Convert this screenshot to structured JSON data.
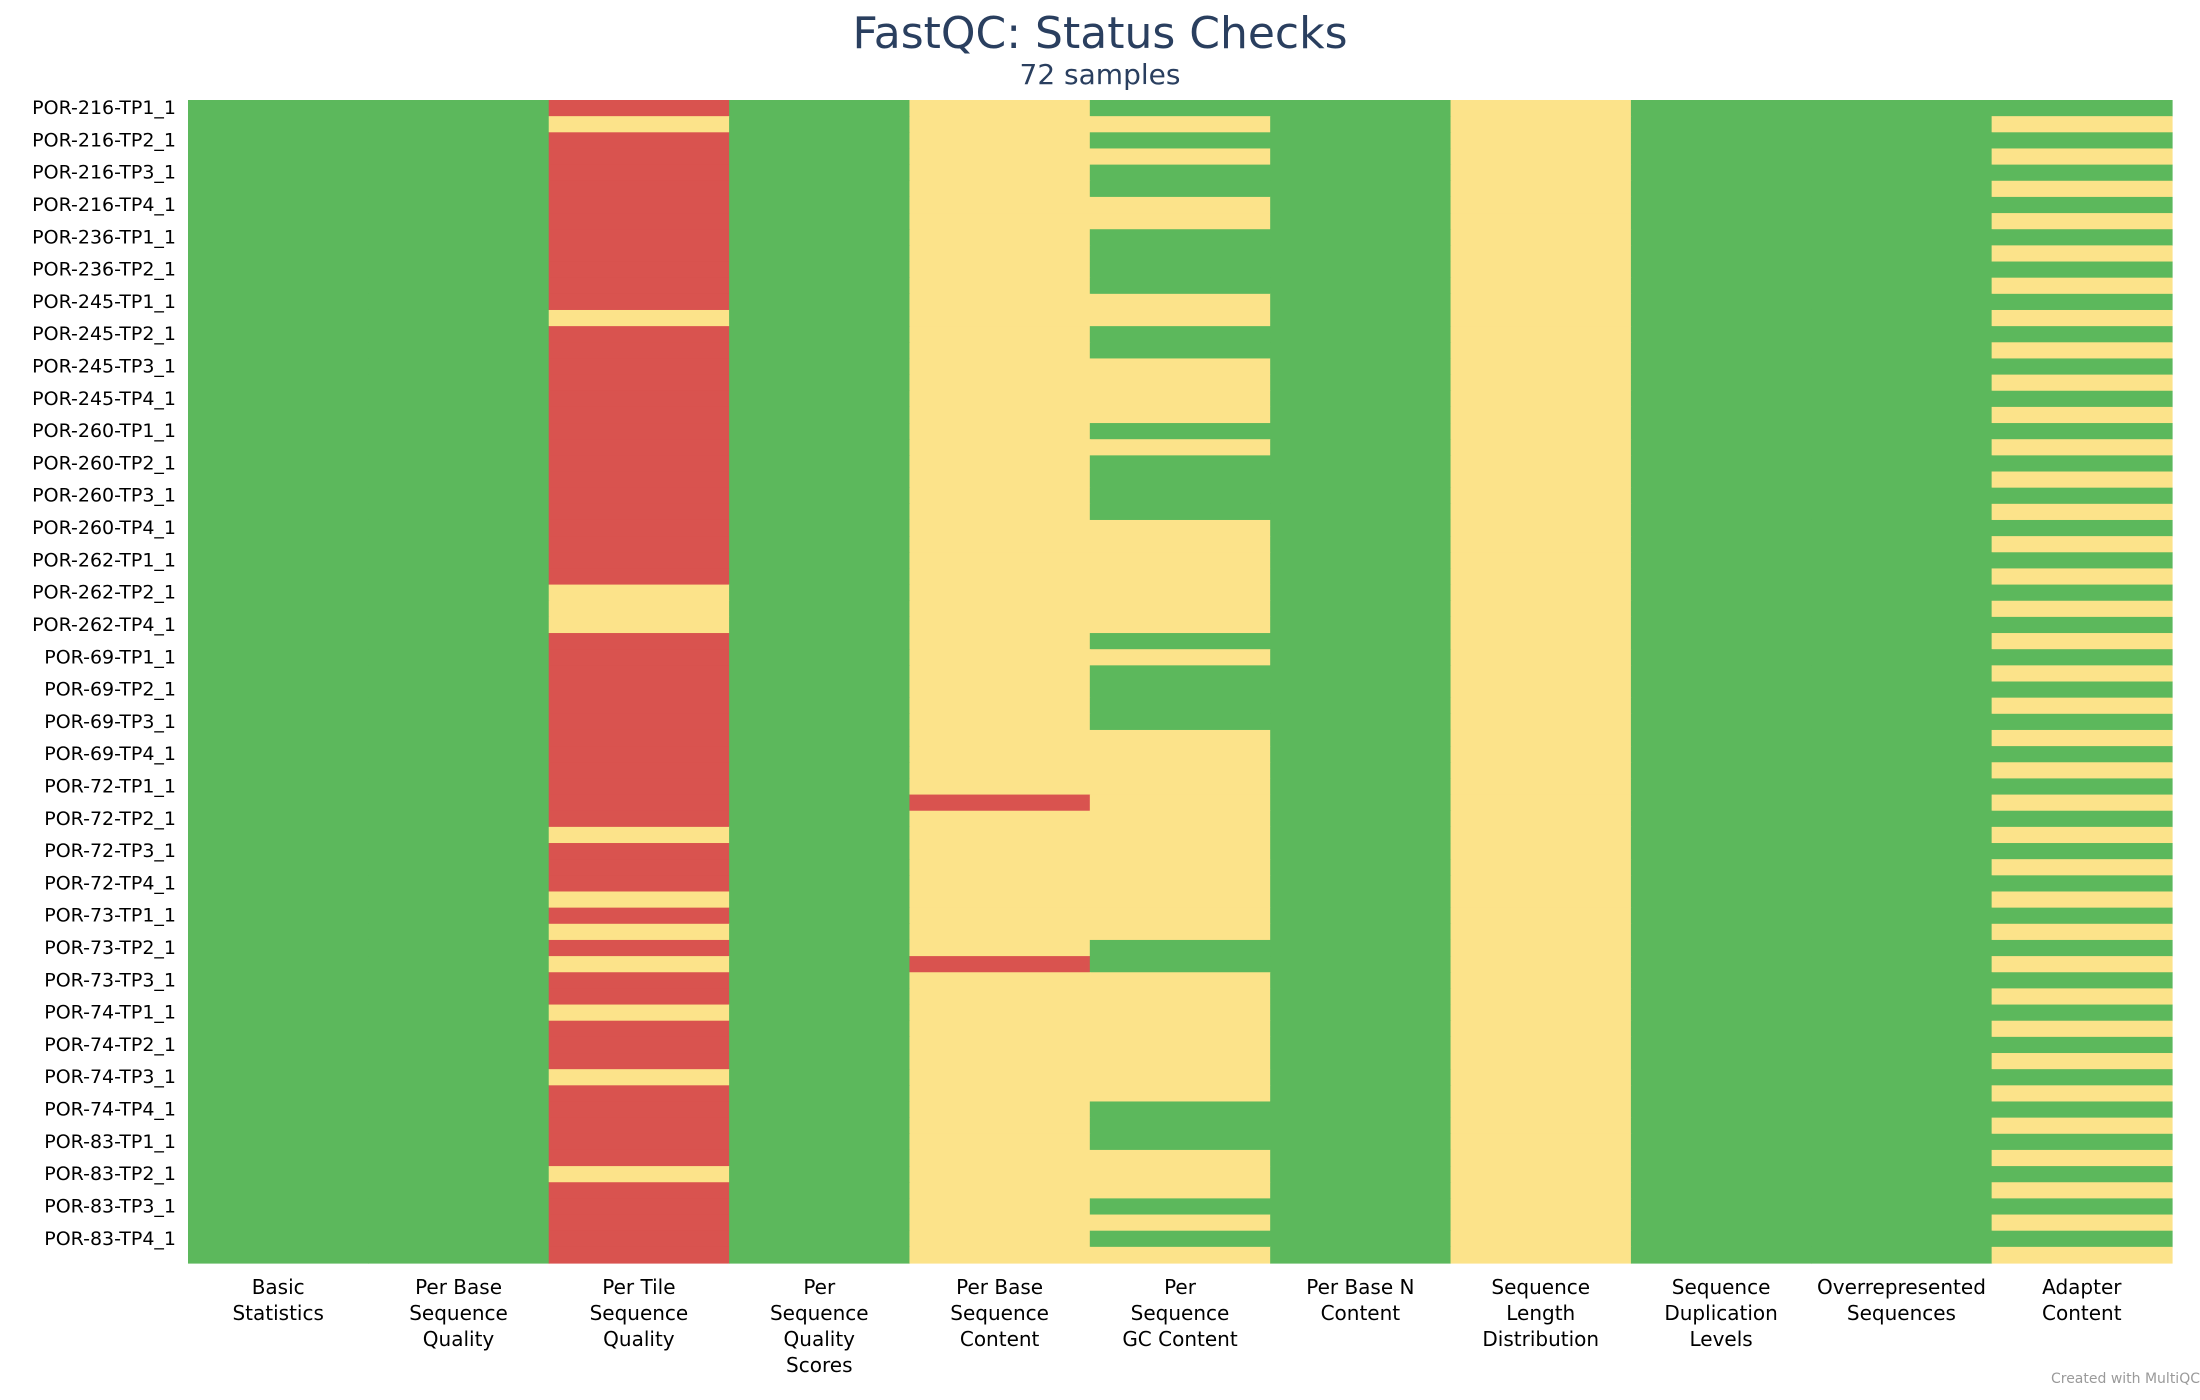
{
  "chart_data": {
    "type": "heatmap",
    "title": "FastQC: Status Checks",
    "subtitle": "72 samples",
    "colors": {
      "pass": "#5cb85c",
      "warn": "#fce38a",
      "fail": "#d9534f"
    },
    "columns": [
      [
        "Basic",
        "Statistics"
      ],
      [
        "Per Base",
        "Sequence",
        "Quality"
      ],
      [
        "Per Tile",
        "Sequence",
        "Quality"
      ],
      [
        "Per",
        "Sequence",
        "Quality",
        "Scores"
      ],
      [
        "Per Base",
        "Sequence",
        "Content"
      ],
      [
        "Per",
        "Sequence",
        "GC Content"
      ],
      [
        "Per Base N",
        "Content"
      ],
      [
        "Sequence",
        "Length",
        "Distribution"
      ],
      [
        "Sequence",
        "Duplication",
        "Levels"
      ],
      [
        "Overrepresented",
        "Sequences"
      ],
      [
        "Adapter",
        "Content"
      ]
    ],
    "row_labels": [
      "POR-216-TP1_1",
      "POR-216-TP2_1",
      "POR-216-TP3_1",
      "POR-216-TP4_1",
      "POR-236-TP1_1",
      "POR-236-TP2_1",
      "POR-245-TP1_1",
      "POR-245-TP2_1",
      "POR-245-TP3_1",
      "POR-245-TP4_1",
      "POR-260-TP1_1",
      "POR-260-TP2_1",
      "POR-260-TP3_1",
      "POR-260-TP4_1",
      "POR-262-TP1_1",
      "POR-262-TP2_1",
      "POR-262-TP4_1",
      "POR-69-TP1_1",
      "POR-69-TP2_1",
      "POR-69-TP3_1",
      "POR-69-TP4_1",
      "POR-72-TP1_1",
      "POR-72-TP2_1",
      "POR-72-TP3_1",
      "POR-72-TP4_1",
      "POR-73-TP1_1",
      "POR-73-TP2_1",
      "POR-73-TP3_1",
      "POR-74-TP1_1",
      "POR-74-TP2_1",
      "POR-74-TP3_1",
      "POR-74-TP4_1",
      "POR-83-TP1_1",
      "POR-83-TP2_1",
      "POR-83-TP3_1",
      "POR-83-TP4_1"
    ],
    "status_rows": [
      [
        "pass",
        "pass",
        "fail",
        "pass",
        "warn",
        "pass",
        "pass",
        "warn",
        "pass",
        "pass",
        "pass"
      ],
      [
        "pass",
        "pass",
        "warn",
        "pass",
        "warn",
        "warn",
        "pass",
        "warn",
        "pass",
        "pass",
        "warn"
      ],
      [
        "pass",
        "pass",
        "fail",
        "pass",
        "warn",
        "pass",
        "pass",
        "warn",
        "pass",
        "pass",
        "pass"
      ],
      [
        "pass",
        "pass",
        "fail",
        "pass",
        "warn",
        "warn",
        "pass",
        "warn",
        "pass",
        "pass",
        "warn"
      ],
      [
        "pass",
        "pass",
        "fail",
        "pass",
        "warn",
        "pass",
        "pass",
        "warn",
        "pass",
        "pass",
        "pass"
      ],
      [
        "pass",
        "pass",
        "fail",
        "pass",
        "warn",
        "pass",
        "pass",
        "warn",
        "pass",
        "pass",
        "warn"
      ],
      [
        "pass",
        "pass",
        "fail",
        "pass",
        "warn",
        "warn",
        "pass",
        "warn",
        "pass",
        "pass",
        "pass"
      ],
      [
        "pass",
        "pass",
        "fail",
        "pass",
        "warn",
        "warn",
        "pass",
        "warn",
        "pass",
        "pass",
        "warn"
      ],
      [
        "pass",
        "pass",
        "fail",
        "pass",
        "warn",
        "pass",
        "pass",
        "warn",
        "pass",
        "pass",
        "pass"
      ],
      [
        "pass",
        "pass",
        "fail",
        "pass",
        "warn",
        "pass",
        "pass",
        "warn",
        "pass",
        "pass",
        "warn"
      ],
      [
        "pass",
        "pass",
        "fail",
        "pass",
        "warn",
        "pass",
        "pass",
        "warn",
        "pass",
        "pass",
        "pass"
      ],
      [
        "pass",
        "pass",
        "fail",
        "pass",
        "warn",
        "pass",
        "pass",
        "warn",
        "pass",
        "pass",
        "warn"
      ],
      [
        "pass",
        "pass",
        "fail",
        "pass",
        "warn",
        "warn",
        "pass",
        "warn",
        "pass",
        "pass",
        "pass"
      ],
      [
        "pass",
        "pass",
        "warn",
        "pass",
        "warn",
        "warn",
        "pass",
        "warn",
        "pass",
        "pass",
        "warn"
      ],
      [
        "pass",
        "pass",
        "fail",
        "pass",
        "warn",
        "pass",
        "pass",
        "warn",
        "pass",
        "pass",
        "pass"
      ],
      [
        "pass",
        "pass",
        "fail",
        "pass",
        "warn",
        "pass",
        "pass",
        "warn",
        "pass",
        "pass",
        "warn"
      ],
      [
        "pass",
        "pass",
        "fail",
        "pass",
        "warn",
        "warn",
        "pass",
        "warn",
        "pass",
        "pass",
        "pass"
      ],
      [
        "pass",
        "pass",
        "fail",
        "pass",
        "warn",
        "warn",
        "pass",
        "warn",
        "pass",
        "pass",
        "warn"
      ],
      [
        "pass",
        "pass",
        "fail",
        "pass",
        "warn",
        "warn",
        "pass",
        "warn",
        "pass",
        "pass",
        "pass"
      ],
      [
        "pass",
        "pass",
        "fail",
        "pass",
        "warn",
        "warn",
        "pass",
        "warn",
        "pass",
        "pass",
        "warn"
      ],
      [
        "pass",
        "pass",
        "fail",
        "pass",
        "warn",
        "pass",
        "pass",
        "warn",
        "pass",
        "pass",
        "pass"
      ],
      [
        "pass",
        "pass",
        "fail",
        "pass",
        "warn",
        "warn",
        "pass",
        "warn",
        "pass",
        "pass",
        "warn"
      ],
      [
        "pass",
        "pass",
        "fail",
        "pass",
        "warn",
        "pass",
        "pass",
        "warn",
        "pass",
        "pass",
        "pass"
      ],
      [
        "pass",
        "pass",
        "fail",
        "pass",
        "warn",
        "pass",
        "pass",
        "warn",
        "pass",
        "pass",
        "warn"
      ],
      [
        "pass",
        "pass",
        "fail",
        "pass",
        "warn",
        "pass",
        "pass",
        "warn",
        "pass",
        "pass",
        "pass"
      ],
      [
        "pass",
        "pass",
        "fail",
        "pass",
        "warn",
        "pass",
        "pass",
        "warn",
        "pass",
        "pass",
        "warn"
      ],
      [
        "pass",
        "pass",
        "fail",
        "pass",
        "warn",
        "warn",
        "pass",
        "warn",
        "pass",
        "pass",
        "pass"
      ],
      [
        "pass",
        "pass",
        "fail",
        "pass",
        "warn",
        "warn",
        "pass",
        "warn",
        "pass",
        "pass",
        "warn"
      ],
      [
        "pass",
        "pass",
        "fail",
        "pass",
        "warn",
        "warn",
        "pass",
        "warn",
        "pass",
        "pass",
        "pass"
      ],
      [
        "pass",
        "pass",
        "fail",
        "pass",
        "warn",
        "warn",
        "pass",
        "warn",
        "pass",
        "pass",
        "warn"
      ],
      [
        "pass",
        "pass",
        "warn",
        "pass",
        "warn",
        "warn",
        "pass",
        "warn",
        "pass",
        "pass",
        "pass"
      ],
      [
        "pass",
        "pass",
        "warn",
        "pass",
        "warn",
        "warn",
        "pass",
        "warn",
        "pass",
        "pass",
        "warn"
      ],
      [
        "pass",
        "pass",
        "warn",
        "pass",
        "warn",
        "warn",
        "pass",
        "warn",
        "pass",
        "pass",
        "pass"
      ],
      [
        "pass",
        "pass",
        "fail",
        "pass",
        "warn",
        "pass",
        "pass",
        "warn",
        "pass",
        "pass",
        "warn"
      ],
      [
        "pass",
        "pass",
        "fail",
        "pass",
        "warn",
        "warn",
        "pass",
        "warn",
        "pass",
        "pass",
        "pass"
      ],
      [
        "pass",
        "pass",
        "fail",
        "pass",
        "warn",
        "pass",
        "pass",
        "warn",
        "pass",
        "pass",
        "warn"
      ],
      [
        "pass",
        "pass",
        "fail",
        "pass",
        "warn",
        "pass",
        "pass",
        "warn",
        "pass",
        "pass",
        "pass"
      ],
      [
        "pass",
        "pass",
        "fail",
        "pass",
        "warn",
        "pass",
        "pass",
        "warn",
        "pass",
        "pass",
        "warn"
      ],
      [
        "pass",
        "pass",
        "fail",
        "pass",
        "warn",
        "pass",
        "pass",
        "warn",
        "pass",
        "pass",
        "pass"
      ],
      [
        "pass",
        "pass",
        "fail",
        "pass",
        "warn",
        "warn",
        "pass",
        "warn",
        "pass",
        "pass",
        "warn"
      ],
      [
        "pass",
        "pass",
        "fail",
        "pass",
        "warn",
        "warn",
        "pass",
        "warn",
        "pass",
        "pass",
        "pass"
      ],
      [
        "pass",
        "pass",
        "fail",
        "pass",
        "warn",
        "warn",
        "pass",
        "warn",
        "pass",
        "pass",
        "warn"
      ],
      [
        "pass",
        "pass",
        "fail",
        "pass",
        "warn",
        "warn",
        "pass",
        "warn",
        "pass",
        "pass",
        "pass"
      ],
      [
        "pass",
        "pass",
        "fail",
        "pass",
        "fail",
        "warn",
        "pass",
        "warn",
        "pass",
        "pass",
        "warn"
      ],
      [
        "pass",
        "pass",
        "fail",
        "pass",
        "warn",
        "warn",
        "pass",
        "warn",
        "pass",
        "pass",
        "pass"
      ],
      [
        "pass",
        "pass",
        "warn",
        "pass",
        "warn",
        "warn",
        "pass",
        "warn",
        "pass",
        "pass",
        "warn"
      ],
      [
        "pass",
        "pass",
        "fail",
        "pass",
        "warn",
        "warn",
        "pass",
        "warn",
        "pass",
        "pass",
        "pass"
      ],
      [
        "pass",
        "pass",
        "fail",
        "pass",
        "warn",
        "warn",
        "pass",
        "warn",
        "pass",
        "pass",
        "warn"
      ],
      [
        "pass",
        "pass",
        "fail",
        "pass",
        "warn",
        "warn",
        "pass",
        "warn",
        "pass",
        "pass",
        "pass"
      ],
      [
        "pass",
        "pass",
        "warn",
        "pass",
        "warn",
        "warn",
        "pass",
        "warn",
        "pass",
        "pass",
        "warn"
      ],
      [
        "pass",
        "pass",
        "fail",
        "pass",
        "warn",
        "warn",
        "pass",
        "warn",
        "pass",
        "pass",
        "pass"
      ],
      [
        "pass",
        "pass",
        "warn",
        "pass",
        "warn",
        "warn",
        "pass",
        "warn",
        "pass",
        "pass",
        "warn"
      ],
      [
        "pass",
        "pass",
        "fail",
        "pass",
        "warn",
        "pass",
        "pass",
        "warn",
        "pass",
        "pass",
        "pass"
      ],
      [
        "pass",
        "pass",
        "warn",
        "pass",
        "fail",
        "pass",
        "pass",
        "warn",
        "pass",
        "pass",
        "warn"
      ],
      [
        "pass",
        "pass",
        "fail",
        "pass",
        "warn",
        "warn",
        "pass",
        "warn",
        "pass",
        "pass",
        "pass"
      ],
      [
        "pass",
        "pass",
        "fail",
        "pass",
        "warn",
        "warn",
        "pass",
        "warn",
        "pass",
        "pass",
        "warn"
      ],
      [
        "pass",
        "pass",
        "warn",
        "pass",
        "warn",
        "warn",
        "pass",
        "warn",
        "pass",
        "pass",
        "pass"
      ],
      [
        "pass",
        "pass",
        "fail",
        "pass",
        "warn",
        "warn",
        "pass",
        "warn",
        "pass",
        "pass",
        "warn"
      ],
      [
        "pass",
        "pass",
        "fail",
        "pass",
        "warn",
        "warn",
        "pass",
        "warn",
        "pass",
        "pass",
        "pass"
      ],
      [
        "pass",
        "pass",
        "fail",
        "pass",
        "warn",
        "warn",
        "pass",
        "warn",
        "pass",
        "pass",
        "warn"
      ],
      [
        "pass",
        "pass",
        "warn",
        "pass",
        "warn",
        "warn",
        "pass",
        "warn",
        "pass",
        "pass",
        "pass"
      ],
      [
        "pass",
        "pass",
        "fail",
        "pass",
        "warn",
        "warn",
        "pass",
        "warn",
        "pass",
        "pass",
        "warn"
      ],
      [
        "pass",
        "pass",
        "fail",
        "pass",
        "warn",
        "pass",
        "pass",
        "warn",
        "pass",
        "pass",
        "pass"
      ],
      [
        "pass",
        "pass",
        "fail",
        "pass",
        "warn",
        "pass",
        "pass",
        "warn",
        "pass",
        "pass",
        "warn"
      ],
      [
        "pass",
        "pass",
        "fail",
        "pass",
        "warn",
        "pass",
        "pass",
        "warn",
        "pass",
        "pass",
        "pass"
      ],
      [
        "pass",
        "pass",
        "fail",
        "pass",
        "warn",
        "warn",
        "pass",
        "warn",
        "pass",
        "pass",
        "warn"
      ],
      [
        "pass",
        "pass",
        "warn",
        "pass",
        "warn",
        "warn",
        "pass",
        "warn",
        "pass",
        "pass",
        "pass"
      ],
      [
        "pass",
        "pass",
        "fail",
        "pass",
        "warn",
        "warn",
        "pass",
        "warn",
        "pass",
        "pass",
        "warn"
      ],
      [
        "pass",
        "pass",
        "fail",
        "pass",
        "warn",
        "pass",
        "pass",
        "warn",
        "pass",
        "pass",
        "pass"
      ],
      [
        "pass",
        "pass",
        "fail",
        "pass",
        "warn",
        "warn",
        "pass",
        "warn",
        "pass",
        "pass",
        "warn"
      ],
      [
        "pass",
        "pass",
        "fail",
        "pass",
        "warn",
        "pass",
        "pass",
        "warn",
        "pass",
        "pass",
        "pass"
      ],
      [
        "pass",
        "pass",
        "fail",
        "pass",
        "warn",
        "warn",
        "pass",
        "warn",
        "pass",
        "pass",
        "warn"
      ]
    ]
  },
  "footer": {
    "credit": "Created with MultiQC"
  }
}
